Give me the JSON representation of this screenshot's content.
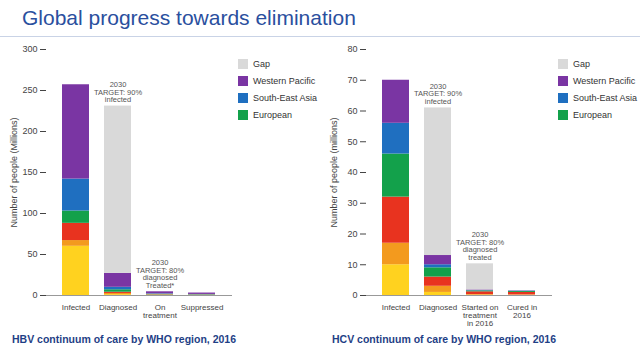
{
  "title": "Global progress towards elimination",
  "chart_data": [
    {
      "type": "bar",
      "stacked": true,
      "legend": "right",
      "caption": "HBV continuum of care by WHO region, 2016",
      "y_label": "Number of people (Millions)",
      "categories": [
        "Infected",
        "Diagnosed",
        "On treatment",
        "Suppressed"
      ],
      "ylim": [
        0,
        300
      ],
      "yticks": [
        0,
        50,
        100,
        150,
        200,
        250,
        300
      ],
      "series": [
        {
          "name": null,
          "color": "#ffd21f",
          "values": [
            60,
            1,
            0.3,
            0.2
          ]
        },
        {
          "name": null,
          "color": "#f39a1e",
          "values": [
            7,
            1.5,
            0.3,
            0.2
          ]
        },
        {
          "name": null,
          "color": "#e8331f",
          "values": [
            21,
            1.5,
            0.3,
            0.2
          ]
        },
        {
          "name": "European",
          "color": "#13a14b",
          "values": [
            15,
            3,
            0.7,
            0.4
          ]
        },
        {
          "name": "South-East Asia",
          "color": "#1f6fc0",
          "values": [
            39,
            3,
            0.4,
            0.3
          ]
        },
        {
          "name": "Western Pacific",
          "color": "#7a35a3",
          "values": [
            115,
            17,
            2.5,
            1.7
          ]
        },
        {
          "name": "Gap",
          "color": "#d9d9d9",
          "values": [
            0,
            204,
            0,
            0
          ]
        }
      ],
      "annotations": [
        {
          "text": "2030 TARGET: 90% infected",
          "category": "Diagnosed"
        },
        {
          "text": "2030 TARGET: 80% diagnosed Treated*",
          "category": "On treatment"
        }
      ]
    },
    {
      "type": "bar",
      "stacked": true,
      "legend": "right",
      "caption": "HCV continuum of care by WHO region, 2016",
      "y_label": "Number of people (millions)",
      "categories": [
        "Infected",
        "Diagnosed",
        "Started on treatment in 2016",
        "Cured in 2016"
      ],
      "ylim": [
        0,
        80
      ],
      "yticks": [
        0,
        10,
        20,
        30,
        40,
        50,
        60,
        70,
        80
      ],
      "series": [
        {
          "name": null,
          "color": "#ffd21f",
          "values": [
            10,
            1,
            0.1,
            0.1
          ]
        },
        {
          "name": null,
          "color": "#f39a1e",
          "values": [
            7,
            2,
            0.2,
            0.1
          ]
        },
        {
          "name": null,
          "color": "#e8331f",
          "values": [
            15,
            3,
            0.9,
            0.8
          ]
        },
        {
          "name": "European",
          "color": "#13a14b",
          "values": [
            14,
            3,
            0.3,
            0.3
          ]
        },
        {
          "name": "South-East Asia",
          "color": "#1f6fc0",
          "values": [
            10,
            1,
            0.1,
            0.1
          ]
        },
        {
          "name": "Western Pacific",
          "color": "#7a35a3",
          "values": [
            14,
            3,
            0.2,
            0.1
          ]
        },
        {
          "name": "Gap",
          "color": "#d9d9d9",
          "values": [
            0,
            48,
            8.5,
            0
          ]
        }
      ],
      "annotations": [
        {
          "text": "2030 TARGET: 90% infected",
          "category": "Diagnosed"
        },
        {
          "text": "2030 TARGET: 80% diagnosed treated",
          "category": "Started on treatment in 2016"
        }
      ]
    }
  ]
}
